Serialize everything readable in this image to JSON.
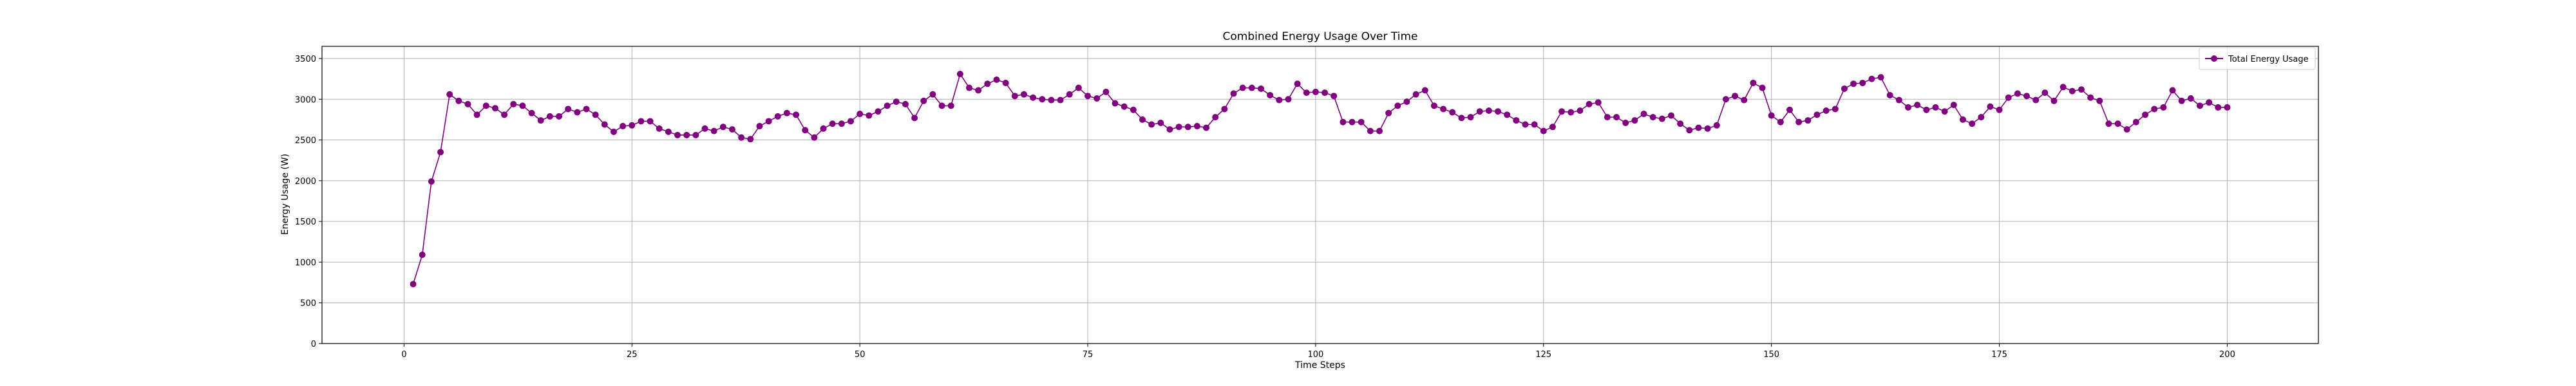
{
  "chart_data": {
    "type": "line",
    "title": "Combined Energy Usage Over Time",
    "xlabel": "Time Steps",
    "ylabel": "Energy Usage (W)",
    "xlim": [
      -9,
      210
    ],
    "ylim": [
      0,
      3650
    ],
    "xticks": [
      0,
      25,
      50,
      75,
      100,
      125,
      150,
      175,
      200
    ],
    "yticks": [
      0,
      500,
      1000,
      1500,
      2000,
      2500,
      3000,
      3500
    ],
    "grid": true,
    "legend_position": "top-right",
    "series": [
      {
        "name": "Total Energy Usage",
        "color": "#800080",
        "marker": "circle",
        "x_start": 1,
        "x_step": 1,
        "values": [
          730,
          1090,
          1990,
          2350,
          3060,
          2980,
          2940,
          2810,
          2920,
          2890,
          2810,
          2940,
          2920,
          2830,
          2740,
          2790,
          2790,
          2880,
          2840,
          2880,
          2810,
          2690,
          2600,
          2670,
          2680,
          2730,
          2730,
          2640,
          2600,
          2560,
          2560,
          2560,
          2640,
          2610,
          2660,
          2630,
          2530,
          2510,
          2670,
          2730,
          2790,
          2830,
          2810,
          2620,
          2530,
          2640,
          2700,
          2700,
          2730,
          2820,
          2800,
          2850,
          2920,
          2970,
          2940,
          2770,
          2980,
          3060,
          2920,
          2920,
          3310,
          3140,
          3110,
          3190,
          3240,
          3200,
          3040,
          3060,
          3020,
          3000,
          2990,
          2990,
          3060,
          3140,
          3040,
          3010,
          3090,
          2950,
          2910,
          2870,
          2750,
          2690,
          2710,
          2630,
          2660,
          2660,
          2670,
          2650,
          2780,
          2880,
          3070,
          3140,
          3140,
          3130,
          3050,
          2990,
          3000,
          3190,
          3080,
          3090,
          3080,
          3040,
          2720,
          2720,
          2720,
          2610,
          2610,
          2830,
          2920,
          2970,
          3060,
          3110,
          2920,
          2880,
          2840,
          2770,
          2780,
          2850,
          2860,
          2850,
          2810,
          2740,
          2690,
          2690,
          2610,
          2660,
          2850,
          2840,
          2860,
          2940,
          2960,
          2780,
          2780,
          2710,
          2740,
          2820,
          2780,
          2760,
          2800,
          2700,
          2620,
          2650,
          2640,
          2680,
          3000,
          3040,
          2990,
          3200,
          3140,
          2800,
          2720,
          2870,
          2720,
          2740,
          2810,
          2860,
          2880,
          3130,
          3190,
          3200,
          3250,
          3270,
          3050,
          2990,
          2900,
          2930,
          2870,
          2900,
          2850,
          2930,
          2750,
          2700,
          2780,
          2910,
          2870,
          3020,
          3070,
          3040,
          2990,
          3080,
          2980,
          3150,
          3100,
          3120,
          3020,
          2980,
          2700,
          2700,
          2630,
          2720,
          2810,
          2880,
          2900,
          3110,
          2980,
          3010,
          2920,
          2960,
          2900,
          2900
        ]
      }
    ]
  }
}
